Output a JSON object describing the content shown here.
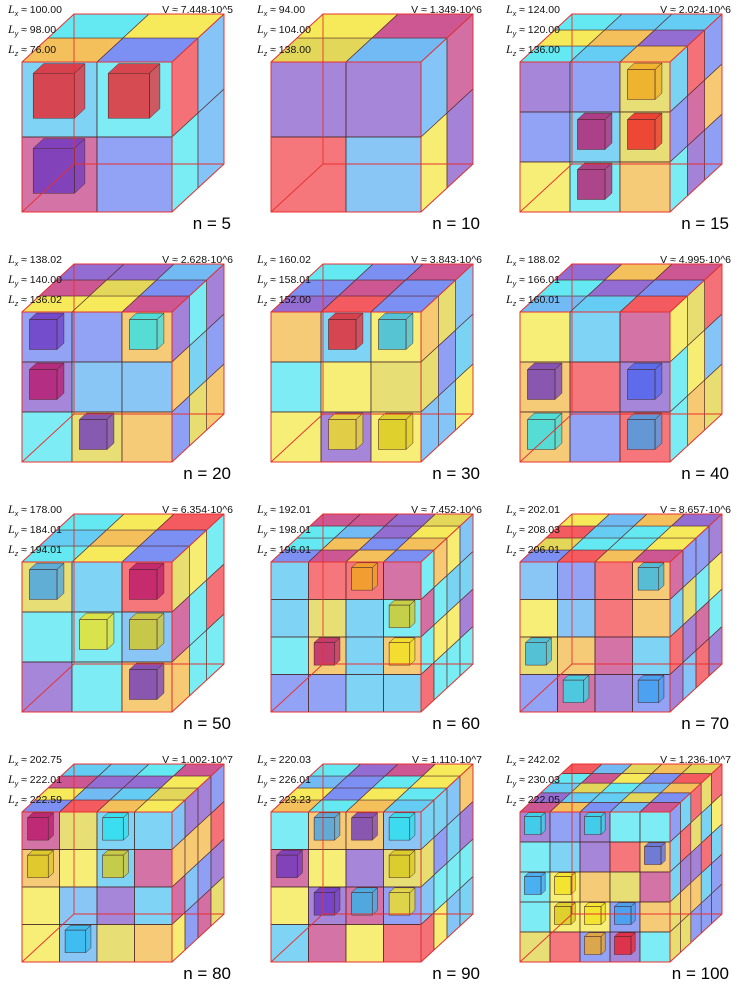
{
  "palette": [
    "#f2e21c",
    "#f0a81c",
    "#4a64ee",
    "#6a35c0",
    "#2ab8ee",
    "#3aa0f0",
    "#b8166a",
    "#ee1c24",
    "#28e0ee",
    "#d8c81a"
  ],
  "frame_color": "#e83030",
  "panels": [
    {
      "n": "n = 5",
      "V": "V ≈ 7.448·10^5",
      "Lx": "≈ 100.00",
      "Ly": "≈ 98.00",
      "Lz": "≈ 76.00",
      "grid": 2
    },
    {
      "n": "n = 10",
      "V": "V ≈ 1.349·10^6",
      "Lx": "≈ 94.00",
      "Ly": "≈ 104.00",
      "Lz": "≈ 138.00",
      "grid": 2
    },
    {
      "n": "n = 15",
      "V": "V ≈ 2.024·10^6",
      "Lx": "≈ 124.00",
      "Ly": "≈ 120.00",
      "Lz": "≈ 136.00",
      "grid": 3
    },
    {
      "n": "n = 20",
      "V": "V ≈ 2.628·10^6",
      "Lx": "≈ 138.02",
      "Ly": "≈ 140.00",
      "Lz": "≈ 136.02",
      "grid": 3
    },
    {
      "n": "n = 30",
      "V": "V ≈ 3.843·10^6",
      "Lx": "≈ 160.02",
      "Ly": "≈ 158.01",
      "Lz": "≈ 152.00",
      "grid": 3
    },
    {
      "n": "n = 40",
      "V": "V ≈ 4.995·10^6",
      "Lx": "≈ 188.02",
      "Ly": "≈ 166.01",
      "Lz": "≈ 160.01",
      "grid": 3
    },
    {
      "n": "n = 50",
      "V": "V ≈ 6.354·10^6",
      "Lx": "≈ 178.00",
      "Ly": "≈ 184.01",
      "Lz": "≈ 194.01",
      "grid": 3
    },
    {
      "n": "n = 60",
      "V": "V ≈ 7.452·10^6",
      "Lx": "≈ 192.01",
      "Ly": "≈ 198.01",
      "Lz": "≈ 196.01",
      "grid": 4
    },
    {
      "n": "n = 70",
      "V": "V ≈ 8.657·10^6",
      "Lx": "≈ 202.01",
      "Ly": "≈ 208.03",
      "Lz": "≈ 206.01",
      "grid": 4
    },
    {
      "n": "n = 80",
      "V": "V ≈ 1.002·10^7",
      "Lx": "≈ 202.75",
      "Ly": "≈ 222.01",
      "Lz": "≈ 222.59",
      "grid": 4
    },
    {
      "n": "n = 90",
      "V": "V ≈ 1.110·10^7",
      "Lx": "≈ 220.03",
      "Ly": "≈ 226.01",
      "Lz": "≈ 223.23",
      "grid": 4
    },
    {
      "n": "n = 100",
      "V": "V ≈ 1.236·10^7",
      "Lx": "≈ 242.02",
      "Ly": "≈ 230.03",
      "Lz": "≈ 222.05",
      "grid": 5
    }
  ]
}
